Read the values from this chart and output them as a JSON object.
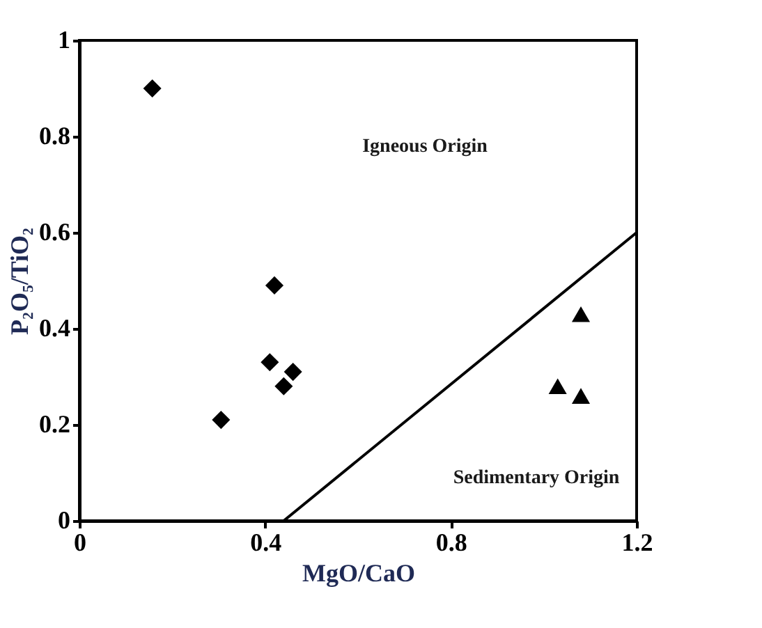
{
  "chart_data": {
    "type": "scatter",
    "xlabel": "MgO/CaO",
    "ylabel": "P₂O₅/TiO₂",
    "xlim": [
      0,
      1.2
    ],
    "xticks": [
      0,
      0.4,
      0.8,
      1.2
    ],
    "ylim": [
      0,
      1
    ],
    "yticks": [
      0,
      0.2,
      0.4,
      0.6,
      0.8,
      1
    ],
    "grid": false,
    "series": [
      {
        "marker": "diamond",
        "color": "#000000",
        "x": [
          0.157,
          0.42,
          0.41,
          0.46,
          0.44,
          0.305
        ],
        "values": [
          0.9,
          0.49,
          0.33,
          0.31,
          0.28,
          0.21
        ]
      },
      {
        "marker": "triangle",
        "color": "#000000",
        "x": [
          1.08,
          1.03,
          1.08
        ],
        "values": [
          0.43,
          0.28,
          0.26
        ]
      },
      {
        "type": "line",
        "line_style": "solid",
        "marker": "none",
        "color": "#000000",
        "x": [
          0.44,
          1.2
        ],
        "values": [
          0,
          0.6
        ]
      }
    ],
    "annotations": [
      "Igneous Origin",
      "Sedimentary Origin"
    ]
  }
}
